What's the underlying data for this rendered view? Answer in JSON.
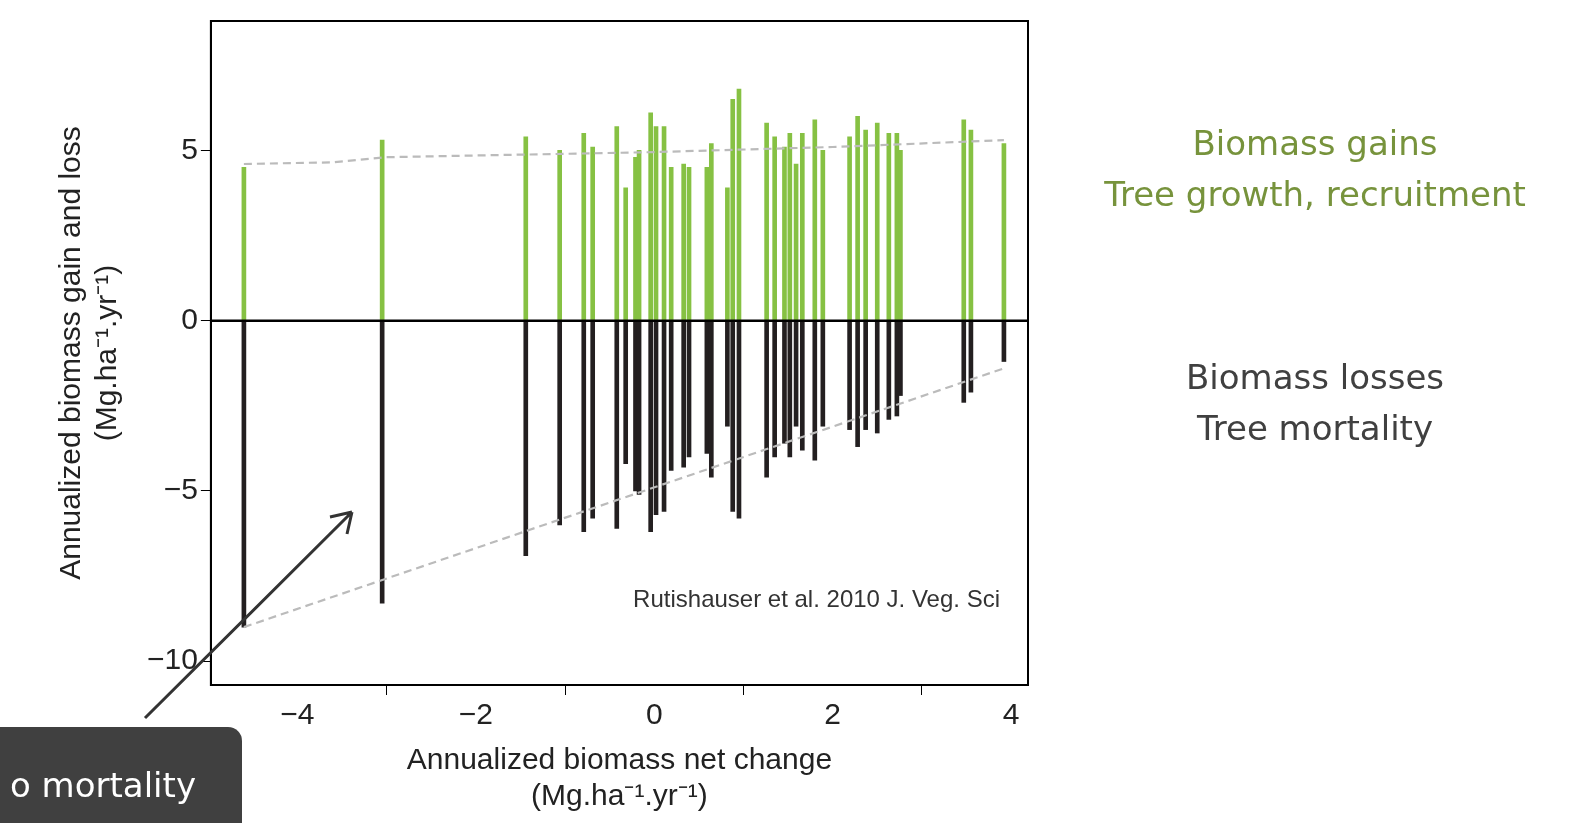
{
  "chart_data": {
    "type": "bar",
    "xlabel": "Annualized biomass net change\n(Mg.ha⁻¹.yr⁻¹)",
    "ylabel": "Annualized biomass gain and loss\n(Mg.ha⁻¹.yr⁻¹)",
    "x": [
      -4.6,
      -3.05,
      -1.44,
      -1.06,
      -0.79,
      -0.69,
      -0.42,
      -0.32,
      -0.21,
      -0.17,
      -0.04,
      0.02,
      0.11,
      0.19,
      0.33,
      0.39,
      0.59,
      0.64,
      0.82,
      0.88,
      0.95,
      1.26,
      1.35,
      1.46,
      1.52,
      1.59,
      1.66,
      1.8,
      1.89,
      2.19,
      2.28,
      2.37,
      2.5,
      2.63,
      2.72,
      2.76,
      3.47,
      3.55,
      3.92
    ],
    "stacked": true,
    "series": [
      {
        "color": "#86c143",
        "values": [
          4.5,
          5.3,
          5.4,
          5.0,
          5.5,
          5.1,
          5.7,
          3.9,
          4.8,
          5.0,
          6.1,
          5.7,
          5.7,
          4.5,
          4.6,
          4.5,
          4.5,
          5.2,
          3.9,
          6.5,
          6.8,
          5.8,
          5.4,
          5.1,
          5.5,
          4.6,
          5.5,
          5.9,
          5.0,
          5.4,
          6.0,
          5.6,
          5.8,
          5.5,
          5.5,
          5.0,
          5.9,
          5.6,
          5.2
        ]
      },
      {
        "color": "#231f20",
        "values": [
          -9.0,
          -8.3,
          -6.9,
          -6.0,
          -6.2,
          -5.8,
          -6.1,
          -4.2,
          -5.0,
          -5.1,
          -6.2,
          -5.7,
          -5.6,
          -4.4,
          -4.3,
          -4.0,
          -3.9,
          -4.6,
          -3.1,
          -5.6,
          -5.8,
          -4.6,
          -4.0,
          -3.6,
          -4.0,
          -3.1,
          -3.8,
          -4.1,
          -3.1,
          -3.2,
          -3.7,
          -3.2,
          -3.3,
          -2.9,
          -2.8,
          -2.2,
          -2.4,
          -2.1,
          -1.2
        ]
      },
      {
        "type": "line",
        "color": "#bbbbbb",
        "line_style": "dashed",
        "x": [
          -4.6,
          -3.6,
          -3.0,
          0,
          2,
          3.92
        ],
        "values": [
          4.6,
          4.65,
          4.8,
          4.95,
          5.1,
          5.3
        ]
      },
      {
        "type": "line",
        "color": "#bbbbbb",
        "line_style": "dashed",
        "x": [
          -4.6,
          3.92
        ],
        "values": [
          -9.0,
          -1.4
        ]
      }
    ],
    "xlim": [
      -4.97,
      4.19
    ],
    "ylim": [
      -10.7,
      8.8
    ],
    "xticks": [
      {
        "value": -4,
        "label": "−4"
      },
      {
        "value": -2,
        "label": "−2"
      },
      0,
      2,
      4
    ],
    "yticks": [
      {
        "value": -10,
        "label": "−10"
      },
      {
        "value": -5,
        "label": "−5"
      },
      0,
      5
    ],
    "ref_lines": [
      {
        "axis": "y",
        "value": 0,
        "color": "#000000"
      }
    ],
    "grid": false,
    "legend": false,
    "annotations": [
      "Biomass gains\nTree growth, recruitment",
      "Biomass losses\nTree mortality",
      "Rutishauser et al. 2010 J. Veg. Sci",
      "o mortality"
    ]
  }
}
